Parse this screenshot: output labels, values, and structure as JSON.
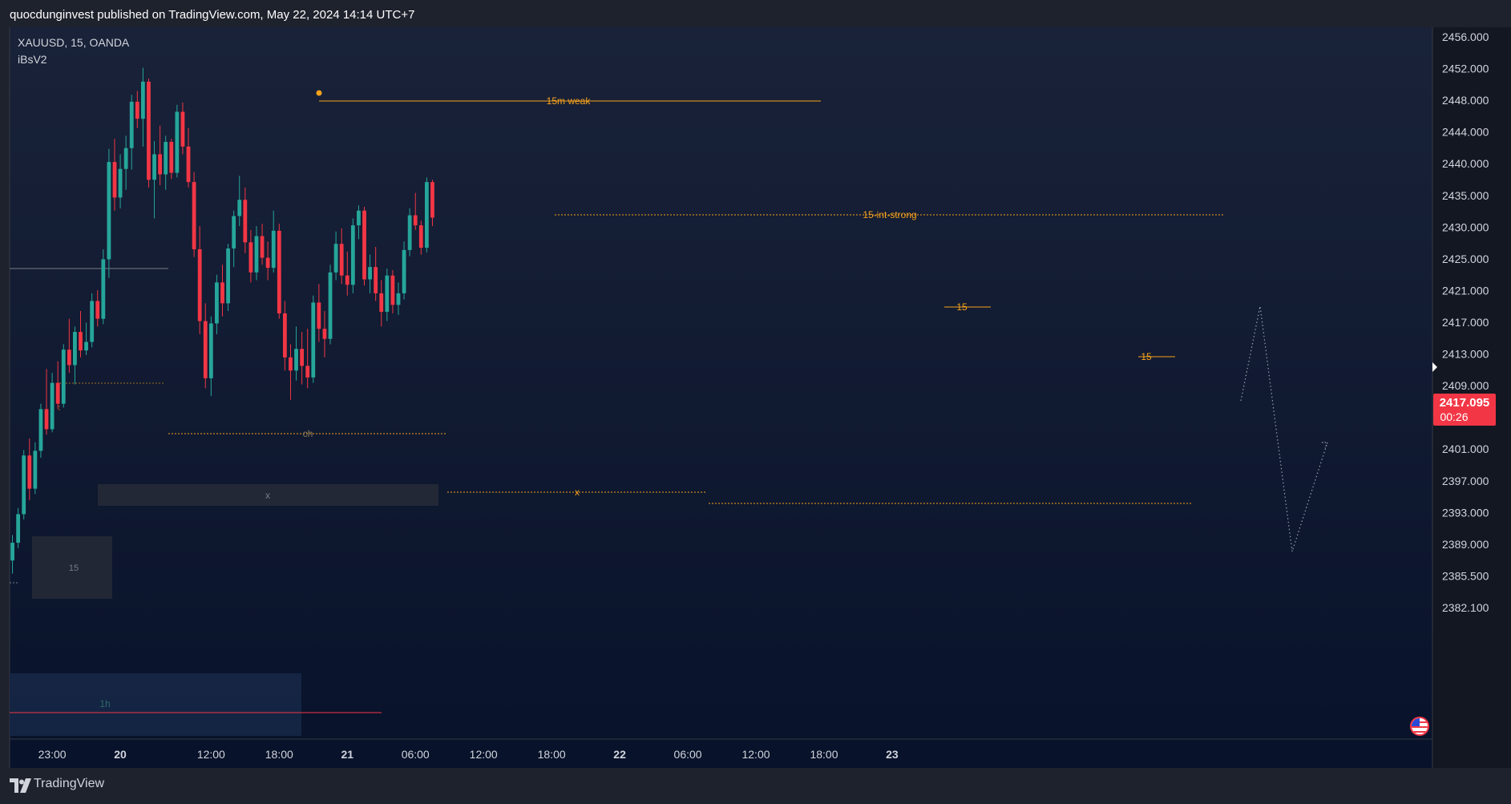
{
  "header": {
    "text": "quocdunginvest published on TradingView.com, May 22, 2024 14:14 UTC+7"
  },
  "legend": {
    "symbol_line": "XAUUSD, 15, OANDA",
    "indicator": "iBsV2"
  },
  "footer": {
    "brand": "TradingView"
  },
  "colors": {
    "up": "#26a69a",
    "down": "#f23645",
    "annotation": "#f7a21b",
    "background_top": "#192238",
    "background_bottom": "#08122a",
    "axis_text": "#d1d4dc"
  },
  "price_tag": {
    "price": "2417.095",
    "countdown": "00:26"
  },
  "chart_data": {
    "type": "candlestick",
    "title": "",
    "xlabel": "",
    "ylabel": "",
    "grid": false,
    "ylim": [
      2380.0,
      2458.0
    ],
    "y_ticks": [
      "2456.000",
      "2452.000",
      "2448.000",
      "2444.000",
      "2440.000",
      "2435.000",
      "2430.000",
      "2425.000",
      "2421.000",
      "2417.000",
      "2413.000",
      "2409.000",
      "2405.000",
      "2401.000",
      "2397.000",
      "2393.000",
      "2389.000",
      "2385.500",
      "2382.100"
    ],
    "x_ticks": [
      {
        "label": "23:00",
        "bar": 7,
        "bold": false
      },
      {
        "label": "20",
        "bar": 19,
        "bold": true
      },
      {
        "label": "12:00",
        "bar": 35,
        "bold": false
      },
      {
        "label": "18:00",
        "bar": 47,
        "bold": false
      },
      {
        "label": "21",
        "bar": 59,
        "bold": true
      },
      {
        "label": "06:00",
        "bar": 71,
        "bold": false
      },
      {
        "label": "12:00",
        "bar": 83,
        "bold": false
      },
      {
        "label": "18:00",
        "bar": 95,
        "bold": false
      },
      {
        "label": "22",
        "bar": 107,
        "bold": true
      },
      {
        "label": "06:00",
        "bar": 119,
        "bold": false
      },
      {
        "label": "12:00",
        "bar": 131,
        "bold": false
      },
      {
        "label": "18:00",
        "bar": 143,
        "bold": false
      },
      {
        "label": "23",
        "bar": 155,
        "bold": true
      }
    ],
    "candles_start_bar": 0,
    "candles": [
      [
        2388.2,
        2391.5,
        2386.5,
        2390.5
      ],
      [
        2390.5,
        2395.0,
        2389.8,
        2394.2
      ],
      [
        2394.2,
        2402.5,
        2393.5,
        2401.8
      ],
      [
        2401.8,
        2404.0,
        2396.0,
        2397.5
      ],
      [
        2397.5,
        2403.5,
        2396.8,
        2402.4
      ],
      [
        2402.4,
        2408.5,
        2401.5,
        2407.8
      ],
      [
        2407.8,
        2413.0,
        2404.5,
        2405.2
      ],
      [
        2405.2,
        2412.5,
        2404.8,
        2411.2
      ],
      [
        2411.2,
        2414.0,
        2407.8,
        2408.5
      ],
      [
        2408.5,
        2416.2,
        2408.0,
        2415.5
      ],
      [
        2415.5,
        2419.5,
        2412.5,
        2413.5
      ],
      [
        2413.5,
        2418.5,
        2411.0,
        2417.8
      ],
      [
        2417.8,
        2420.5,
        2414.5,
        2415.4
      ],
      [
        2415.4,
        2419.0,
        2414.8,
        2416.5
      ],
      [
        2416.5,
        2422.8,
        2415.8,
        2421.8
      ],
      [
        2421.8,
        2423.2,
        2418.5,
        2419.5
      ],
      [
        2419.5,
        2428.5,
        2418.8,
        2427.2
      ],
      [
        2427.2,
        2441.5,
        2424.8,
        2439.8
      ],
      [
        2439.8,
        2442.8,
        2433.5,
        2435.2
      ],
      [
        2435.2,
        2440.8,
        2433.8,
        2438.9
      ],
      [
        2438.9,
        2443.2,
        2436.2,
        2441.6
      ],
      [
        2441.6,
        2448.5,
        2438.8,
        2447.6
      ],
      [
        2447.6,
        2449.0,
        2444.2,
        2445.4
      ],
      [
        2445.4,
        2452.0,
        2441.8,
        2450.2
      ],
      [
        2450.2,
        2450.6,
        2436.5,
        2437.5
      ],
      [
        2437.5,
        2442.5,
        2432.5,
        2440.8
      ],
      [
        2440.8,
        2444.5,
        2436.8,
        2438.2
      ],
      [
        2438.2,
        2443.2,
        2436.2,
        2442.4
      ],
      [
        2442.4,
        2442.8,
        2437.6,
        2438.4
      ],
      [
        2438.4,
        2447.2,
        2437.8,
        2446.3
      ],
      [
        2446.3,
        2447.5,
        2440.8,
        2441.8
      ],
      [
        2441.8,
        2444.2,
        2436.5,
        2437.2
      ],
      [
        2437.2,
        2438.5,
        2427.5,
        2428.5
      ],
      [
        2428.5,
        2431.5,
        2417.5,
        2419.2
      ],
      [
        2419.2,
        2421.5,
        2410.5,
        2411.8
      ],
      [
        2411.8,
        2419.8,
        2409.5,
        2418.9
      ],
      [
        2418.9,
        2425.2,
        2417.5,
        2424.2
      ],
      [
        2424.2,
        2426.5,
        2419.8,
        2421.5
      ],
      [
        2421.5,
        2429.2,
        2420.5,
        2428.6
      ],
      [
        2428.6,
        2433.5,
        2426.2,
        2432.8
      ],
      [
        2432.8,
        2438.0,
        2431.5,
        2434.9
      ],
      [
        2434.9,
        2436.5,
        2428.0,
        2429.4
      ],
      [
        2429.4,
        2431.0,
        2424.2,
        2425.5
      ],
      [
        2425.5,
        2431.5,
        2424.5,
        2430.2
      ],
      [
        2430.2,
        2431.8,
        2426.5,
        2427.4
      ],
      [
        2427.4,
        2429.5,
        2424.5,
        2426.1
      ],
      [
        2426.1,
        2433.5,
        2425.5,
        2430.9
      ],
      [
        2430.9,
        2431.8,
        2419.5,
        2420.2
      ],
      [
        2420.2,
        2421.8,
        2412.8,
        2414.5
      ],
      [
        2414.5,
        2416.2,
        2409.0,
        2412.8
      ],
      [
        2412.8,
        2418.5,
        2411.5,
        2415.6
      ],
      [
        2415.6,
        2417.8,
        2411.0,
        2413.4
      ],
      [
        2413.4,
        2418.2,
        2410.5,
        2411.9
      ],
      [
        2411.9,
        2422.5,
        2411.2,
        2421.6
      ],
      [
        2421.6,
        2424.0,
        2416.5,
        2418.2
      ],
      [
        2418.2,
        2420.5,
        2414.5,
        2416.9
      ],
      [
        2416.9,
        2426.5,
        2416.2,
        2425.5
      ],
      [
        2425.5,
        2430.8,
        2424.5,
        2429.2
      ],
      [
        2429.2,
        2431.2,
        2424.0,
        2425.1
      ],
      [
        2425.1,
        2428.2,
        2422.5,
        2423.9
      ],
      [
        2423.9,
        2432.5,
        2422.8,
        2431.6
      ],
      [
        2431.6,
        2434.2,
        2429.8,
        2433.5
      ],
      [
        2433.5,
        2434.0,
        2423.8,
        2424.6
      ],
      [
        2424.6,
        2427.8,
        2422.8,
        2426.2
      ],
      [
        2426.2,
        2428.8,
        2421.8,
        2422.8
      ],
      [
        2422.8,
        2424.5,
        2418.5,
        2420.4
      ],
      [
        2420.4,
        2426.0,
        2419.2,
        2425.1
      ],
      [
        2425.1,
        2425.8,
        2420.2,
        2421.3
      ],
      [
        2421.3,
        2424.2,
        2420.0,
        2422.8
      ],
      [
        2422.8,
        2429.5,
        2422.0,
        2428.4
      ],
      [
        2428.4,
        2433.8,
        2427.6,
        2432.9
      ],
      [
        2432.9,
        2435.8,
        2431.0,
        2431.6
      ],
      [
        2431.6,
        2432.2,
        2427.8,
        2428.7
      ],
      [
        2428.7,
        2437.8,
        2428.1,
        2437.2
      ],
      [
        2437.2,
        2437.5,
        2431.5,
        2432.6
      ]
    ],
    "annotations": [
      {
        "text": "15m weak",
        "kind": "line-label"
      },
      {
        "text": "15-int-strong",
        "kind": "line-label"
      },
      {
        "text": "ch",
        "kind": "line-label"
      },
      {
        "text": "x",
        "kind": "box-label"
      },
      {
        "text": "x",
        "kind": "line-label"
      },
      {
        "text": "15",
        "kind": "box-label"
      },
      {
        "text": "1h",
        "kind": "box-label"
      },
      {
        "text": "15",
        "kind": "marker-label"
      },
      {
        "text": "15",
        "kind": "marker-label"
      }
    ]
  }
}
